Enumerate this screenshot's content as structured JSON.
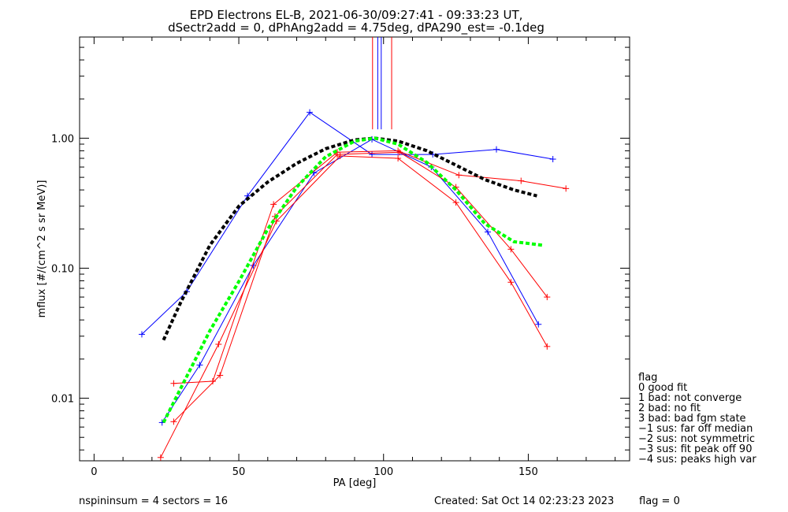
{
  "chart_data": {
    "type": "line",
    "title": "EPD Electrons EL-B, 2021-06-30/09:27:41 - 09:33:23 UT,",
    "subtitle": "dSectr2add = 0, dPhAng2add = 4.75deg, dPA290_est=  -0.1deg",
    "xlabel": "PA [deg]",
    "ylabel": "mflux [#/(cm^2 s sr MeV)]",
    "xlim": [
      -5,
      185
    ],
    "ylim": [
      0.0033,
      6.0
    ],
    "yscale": "log",
    "x_ticks": [
      0,
      50,
      100,
      150
    ],
    "x_tick_labels": [
      "0",
      "50",
      "100",
      "150"
    ],
    "y_ticks": [
      0.01,
      0.1,
      1.0
    ],
    "y_tick_labels": [
      "0.01",
      "0.10",
      "1.00"
    ],
    "grid": false,
    "series": [
      {
        "color": "#0000ff",
        "marker": "+",
        "x": [
          16.5,
          32.0,
          53.0,
          74.5,
          96.0,
          117.0,
          139.0,
          158.5
        ],
        "y": [
          0.031,
          0.066,
          0.36,
          1.58,
          0.75,
          0.75,
          0.82,
          0.69
        ]
      },
      {
        "color": "#0000ff",
        "marker": "+",
        "x": [
          23.5,
          36.5,
          55.0,
          76.0,
          96.0,
          116.5,
          136.0,
          153.5
        ],
        "y": [
          0.0065,
          0.018,
          0.105,
          0.54,
          0.98,
          0.6,
          0.19,
          0.037
        ]
      },
      {
        "color": "#ff0000",
        "marker": "+",
        "x": [
          27.5,
          41.0,
          62.0,
          84.0,
          105.0,
          126.0,
          147.5,
          163.0
        ],
        "y": [
          0.013,
          0.0135,
          0.31,
          0.78,
          0.8,
          0.52,
          0.47,
          0.41
        ]
      },
      {
        "color": "#ff0000",
        "marker": "+",
        "x": [
          27.5,
          43.5,
          62.5,
          84.0,
          105.5,
          125.0,
          144.0,
          156.5
        ],
        "y": [
          0.0066,
          0.015,
          0.25,
          0.75,
          0.78,
          0.42,
          0.14,
          0.06
        ]
      },
      {
        "color": "#ff0000",
        "marker": "+",
        "x": [
          23.0,
          43.0,
          63.0,
          85.0,
          105.0,
          125.0,
          144.0,
          156.5
        ],
        "y": [
          0.0035,
          0.026,
          0.23,
          0.73,
          0.7,
          0.32,
          0.078,
          0.025
        ]
      },
      {
        "color": "#000000",
        "style": "dashed",
        "x": [
          24,
          30,
          40,
          50,
          60,
          70,
          80,
          90,
          97,
          105,
          115,
          125,
          135,
          145,
          153
        ],
        "y": [
          0.028,
          0.055,
          0.15,
          0.3,
          0.46,
          0.64,
          0.83,
          0.97,
          1.0,
          0.95,
          0.8,
          0.62,
          0.48,
          0.4,
          0.36
        ]
      },
      {
        "color": "#00ff00",
        "style": "dashed",
        "x": [
          24,
          30,
          40,
          50,
          60,
          70,
          80,
          90,
          97,
          105,
          115,
          125,
          135,
          145,
          155
        ],
        "y": [
          0.0065,
          0.012,
          0.033,
          0.079,
          0.2,
          0.42,
          0.72,
          0.95,
          1.0,
          0.9,
          0.65,
          0.4,
          0.22,
          0.16,
          0.15
        ]
      }
    ],
    "markers_vertical": [
      {
        "color": "#ff0000",
        "x": [
          96.2,
          102.8
        ]
      },
      {
        "color": "#0000ff",
        "x": [
          98.0,
          99.2
        ]
      }
    ],
    "legend_title": "flag",
    "legend_items": [
      " 0 good fit",
      " 1 bad: not converge",
      " 2 bad: no fit",
      " 3 bad: bad fgm state",
      "−1 sus: far off median",
      "−2 sus: not symmetric",
      "−3 sus: fit peak off 90",
      "−4 sus: peaks high var"
    ],
    "legend_placement": "bottom-right",
    "footer_left": "nspininsum =  4  sectors = 16",
    "footer_center": "Created: Sat Oct 14 02:23:23 2023",
    "footer_right": "flag = 0"
  }
}
